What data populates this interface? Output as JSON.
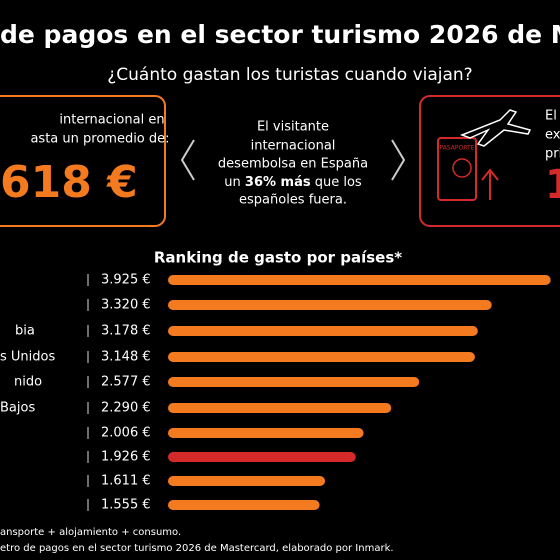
{
  "header": {
    "title": "de pagos en el sector turismo 2026 de M",
    "subtitle": "¿Cuánto gastan los turistas cuando viajan?"
  },
  "left_panel": {
    "lines": [
      "internacional en",
      "asta un promedio de:"
    ],
    "amount": "618 €"
  },
  "middle_panel": {
    "lines": [
      "El visitante",
      "internacional",
      "desembolsa en España"
    ],
    "line4": [
      "un ",
      "36% más",
      " que los"
    ],
    "line5": "españoles fuera."
  },
  "right_panel": {
    "lines": [
      "El",
      "ex",
      "pri"
    ],
    "amount": "1",
    "passport": "PASAPORTE"
  },
  "chart_data": {
    "type": "bar",
    "title": "Ranking de gasto por países*",
    "categories": [
      null,
      null,
      "bia",
      "s Unidos",
      "nido",
      "Bajos",
      null,
      null,
      null,
      null
    ],
    "values": [
      3925,
      3320,
      3178,
      3148,
      2577,
      2290,
      2006,
      1926,
      1611,
      1555
    ],
    "value_labels": [
      "3.925 €",
      "3.320 €",
      "3.178 €",
      "3.148 €",
      "2.577 €",
      "2.290 €",
      "2.006 €",
      "1.926 €",
      "1.611 €",
      "1.555 €"
    ],
    "colors": [
      "#f47a20",
      "#f47a20",
      "#f47a20",
      "#f47a20",
      "#f47a20",
      "#f47a20",
      "#f47a20",
      "#d42a2a",
      "#f47a20",
      "#f47a20"
    ]
  },
  "footer": {
    "lines": [
      "ansporte + alojamiento + consumo.",
      "etro de pagos en el sector turismo 2026 de Mastercard, elaborado por Inmark."
    ]
  }
}
